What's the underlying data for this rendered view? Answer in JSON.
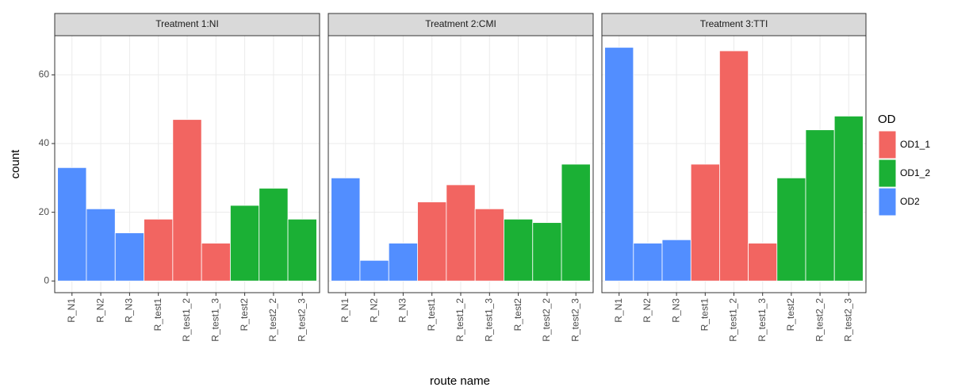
{
  "y_label": "count",
  "x_label": "route name",
  "legend_title": "OD",
  "chart_data": [
    {
      "type": "bar",
      "title": "Treatment 1:NI",
      "categories": [
        "R_N1",
        "R_N2",
        "R_N3",
        "R_test1",
        "R_test1_2",
        "R_test1_3",
        "R_test2",
        "R_test2_2",
        "R_test2_3"
      ],
      "series": [
        {
          "name": "OD1_1",
          "color": "#f26561",
          "values": [
            null,
            null,
            null,
            18,
            47,
            11,
            null,
            null,
            null
          ]
        },
        {
          "name": "OD1_2",
          "color": "#1bb035",
          "values": [
            null,
            null,
            null,
            null,
            null,
            null,
            22,
            27,
            18
          ]
        },
        {
          "name": "OD2",
          "color": "#528eff",
          "values": [
            33,
            21,
            14,
            null,
            null,
            null,
            null,
            null,
            null
          ]
        }
      ],
      "ylim": [
        -3.4,
        71.4
      ],
      "yticks": [
        0,
        20,
        40,
        60
      ],
      "grid": true
    },
    {
      "type": "bar",
      "title": "Treatment 2:CMI",
      "categories": [
        "R_N1",
        "R_N2",
        "R_N3",
        "R_test1",
        "R_test1_2",
        "R_test1_3",
        "R_test2",
        "R_test2_2",
        "R_test2_3"
      ],
      "series": [
        {
          "name": "OD1_1",
          "color": "#f26561",
          "values": [
            null,
            null,
            null,
            23,
            28,
            21,
            null,
            null,
            null
          ]
        },
        {
          "name": "OD1_2",
          "color": "#1bb035",
          "values": [
            null,
            null,
            null,
            null,
            null,
            null,
            18,
            17,
            34
          ]
        },
        {
          "name": "OD2",
          "color": "#528eff",
          "values": [
            30,
            6,
            11,
            null,
            null,
            null,
            null,
            null,
            null
          ]
        }
      ],
      "ylim": [
        -3.4,
        71.4
      ],
      "yticks": [
        0,
        20,
        40,
        60
      ],
      "grid": true
    },
    {
      "type": "bar",
      "title": "Treatment 3:TTI",
      "categories": [
        "R_N1",
        "R_N2",
        "R_N3",
        "R_test1",
        "R_test1_2",
        "R_test1_3",
        "R_test2",
        "R_test2_2",
        "R_test2_3"
      ],
      "series": [
        {
          "name": "OD1_1",
          "color": "#f26561",
          "values": [
            null,
            null,
            null,
            34,
            67,
            11,
            null,
            null,
            null
          ]
        },
        {
          "name": "OD1_2",
          "color": "#1bb035",
          "values": [
            null,
            null,
            null,
            null,
            null,
            null,
            30,
            44,
            48
          ]
        },
        {
          "name": "OD2",
          "color": "#528eff",
          "values": [
            68,
            11,
            12,
            null,
            null,
            null,
            null,
            null,
            null
          ]
        }
      ],
      "ylim": [
        -3.4,
        71.4
      ],
      "yticks": [
        0,
        20,
        40,
        60
      ],
      "grid": true
    }
  ]
}
